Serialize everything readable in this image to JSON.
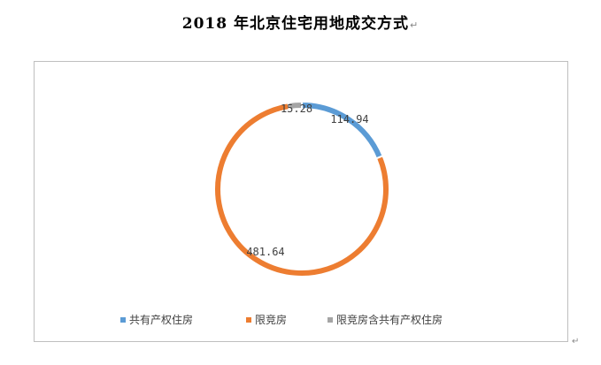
{
  "chart_data": {
    "type": "pie",
    "title": "2018 年北京住宅用地成交方式",
    "title_mark": "↵",
    "corner_mark": "↵",
    "categories": [
      "共有产权住房",
      "限竞房",
      "限竞房含共有产权住房"
    ],
    "values": [
      114.94,
      481.64,
      15.28
    ],
    "value_labels": [
      "114.94",
      "481.64",
      "15.28"
    ],
    "colors": [
      "#5b9bd5",
      "#ed7d31",
      "#a5a5a5"
    ],
    "donut": true,
    "legend_position": "bottom"
  }
}
